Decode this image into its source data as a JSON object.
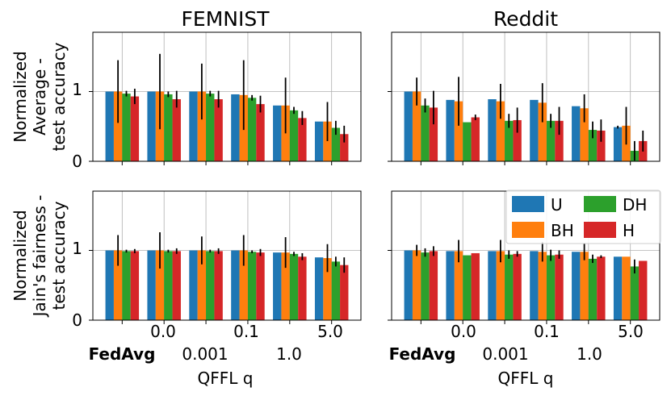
{
  "colors": {
    "U": "#1f77b4",
    "BH": "#ff7f0e",
    "DH": "#2ca02c",
    "H": "#d62728"
  },
  "chart_data": {
    "type": "bar",
    "series_names": [
      "U",
      "BH",
      "DH",
      "H"
    ],
    "legend_labels": {
      "U": "U",
      "DH": "DH",
      "BH": "BH",
      "H": "H"
    },
    "columns": [
      "FEMNIST",
      "Reddit"
    ],
    "row_labels": [
      [
        "Normalized",
        "Average -",
        "test accuracy"
      ],
      [
        "Normalized",
        "Jain's fairness -",
        "test accuracy"
      ]
    ],
    "categories": [
      "FedAvg",
      "0.0",
      "0.001",
      "0.1",
      "1.0",
      "5.0"
    ],
    "x_tick_top": [
      "0.0",
      "0.1",
      "5.0"
    ],
    "x_tick_bottom_bold": "FedAvg",
    "x_tick_bottom": [
      "0.001",
      "1.0"
    ],
    "xlabel": "QFFL q",
    "ylim": [
      0,
      1.85
    ],
    "yticks": [
      "0",
      "1"
    ],
    "panels": [
      {
        "name": "femnist-average",
        "values": {
          "U": [
            1.0,
            1.0,
            1.0,
            0.96,
            0.8,
            0.57
          ],
          "BH": [
            1.0,
            1.0,
            1.0,
            0.95,
            0.8,
            0.57
          ],
          "DH": [
            0.97,
            0.96,
            0.97,
            0.91,
            0.73,
            0.48
          ],
          "H": [
            0.93,
            0.89,
            0.89,
            0.82,
            0.62,
            0.39
          ]
        },
        "errors": {
          "U": [
            0.0,
            0.0,
            0.0,
            0.0,
            0.0,
            0.0
          ],
          "BH": [
            0.45,
            0.54,
            0.4,
            0.5,
            0.4,
            0.28
          ],
          "DH": [
            0.04,
            0.04,
            0.04,
            0.04,
            0.05,
            0.1
          ],
          "H": [
            0.11,
            0.12,
            0.12,
            0.12,
            0.1,
            0.12
          ]
        }
      },
      {
        "name": "reddit-average",
        "values": {
          "U": [
            1.0,
            0.88,
            0.89,
            0.88,
            0.79,
            0.49
          ],
          "BH": [
            1.0,
            0.86,
            0.86,
            0.84,
            0.76,
            0.51
          ],
          "DH": [
            0.8,
            0.56,
            0.58,
            0.58,
            0.45,
            0.15
          ],
          "H": [
            0.77,
            0.63,
            0.59,
            0.58,
            0.44,
            0.29
          ]
        },
        "errors": {
          "U": [
            0.0,
            0.0,
            0.0,
            0.0,
            0.0,
            0.02
          ],
          "BH": [
            0.2,
            0.35,
            0.25,
            0.28,
            0.2,
            0.27
          ],
          "DH": [
            0.1,
            0.0,
            0.1,
            0.1,
            0.12,
            0.14
          ],
          "H": [
            0.24,
            0.04,
            0.18,
            0.2,
            0.16,
            0.15
          ]
        }
      },
      {
        "name": "femnist-jain",
        "values": {
          "U": [
            1.0,
            1.0,
            1.0,
            1.0,
            0.97,
            0.9
          ],
          "BH": [
            1.0,
            1.0,
            1.0,
            1.0,
            0.97,
            0.89
          ],
          "DH": [
            0.99,
            0.99,
            0.99,
            0.98,
            0.95,
            0.84
          ],
          "H": [
            0.99,
            0.99,
            0.99,
            0.97,
            0.91,
            0.79
          ]
        },
        "errors": {
          "U": [
            0.0,
            0.0,
            0.0,
            0.0,
            0.0,
            0.0
          ],
          "BH": [
            0.22,
            0.26,
            0.2,
            0.22,
            0.22,
            0.2
          ],
          "DH": [
            0.02,
            0.02,
            0.02,
            0.02,
            0.03,
            0.07
          ],
          "H": [
            0.03,
            0.04,
            0.04,
            0.05,
            0.05,
            0.11
          ]
        }
      },
      {
        "name": "reddit-jain",
        "values": {
          "U": [
            1.0,
            0.99,
            0.99,
            0.99,
            0.98,
            0.91
          ],
          "BH": [
            1.0,
            0.99,
            0.99,
            0.98,
            0.98,
            0.91
          ],
          "DH": [
            0.97,
            0.93,
            0.94,
            0.93,
            0.88,
            0.77
          ],
          "H": [
            0.99,
            0.96,
            0.95,
            0.94,
            0.91,
            0.85
          ]
        },
        "errors": {
          "U": [
            0.0,
            0.0,
            0.0,
            0.0,
            0.0,
            0.0
          ],
          "BH": [
            0.08,
            0.16,
            0.16,
            0.14,
            0.12,
            0.0
          ],
          "DH": [
            0.06,
            0.0,
            0.06,
            0.08,
            0.06,
            0.1
          ],
          "H": [
            0.07,
            0.0,
            0.04,
            0.06,
            0.02,
            0.0
          ]
        }
      }
    ]
  }
}
